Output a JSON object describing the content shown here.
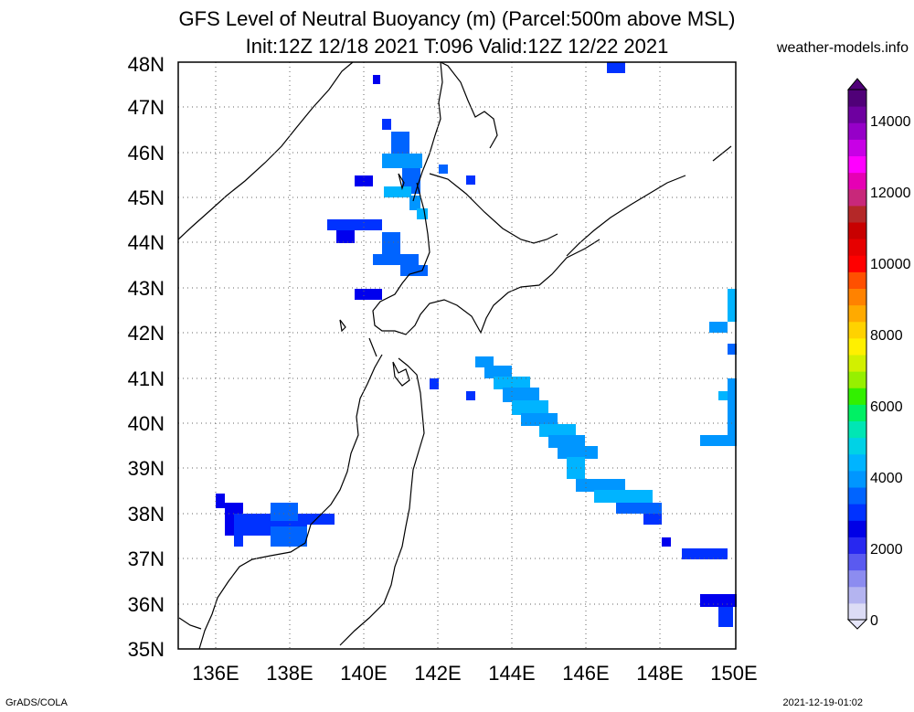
{
  "title_line1": "GFS Level of Neutral Buoyancy (m) (Parcel:500m above MSL)",
  "title_line2": "Init:12Z 12/18 2021 T:096 Valid:12Z 12/22 2021",
  "site": "weather-models.info",
  "footer_left": "GrADS/COLA",
  "footer_right": "2021-12-19-01:02",
  "map": {
    "lon_range": [
      135,
      150
    ],
    "lat_range": [
      35,
      48
    ],
    "lat_ticks": [
      "35N",
      "36N",
      "37N",
      "38N",
      "39N",
      "40N",
      "41N",
      "42N",
      "43N",
      "44N",
      "45N",
      "46N",
      "47N",
      "48N"
    ],
    "lon_ticks": [
      "136E",
      "138E",
      "140E",
      "142E",
      "144E",
      "146E",
      "148E",
      "150E"
    ],
    "grid": "dotted"
  },
  "colorbar": {
    "labels": [
      "0",
      "2000",
      "4000",
      "6000",
      "8000",
      "10000",
      "12000",
      "14000"
    ],
    "colors": [
      "#dcdcf5",
      "#b4b4f0",
      "#8c8cf0",
      "#5a5af0",
      "#2828f0",
      "#0000e6",
      "#0032ff",
      "#0064ff",
      "#0096ff",
      "#00b4ff",
      "#00d2e6",
      "#00e6b4",
      "#00f064",
      "#32f000",
      "#96f000",
      "#d2f000",
      "#fff000",
      "#ffd200",
      "#ffaa00",
      "#ff8200",
      "#ff5000",
      "#ff0000",
      "#e60000",
      "#c80000",
      "#b42828",
      "#c8287a",
      "#e600b4",
      "#ff00ff",
      "#c800e6",
      "#9600c8",
      "#6e00a0",
      "#500078"
    ]
  }
}
